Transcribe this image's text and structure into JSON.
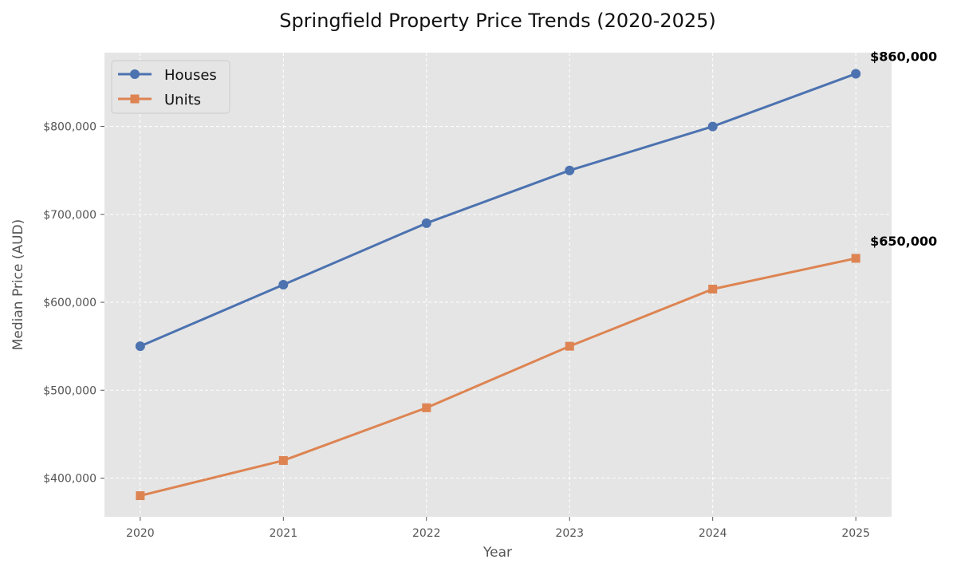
{
  "chart_data": {
    "type": "line",
    "title": "Springfield Property Price Trends (2020-2025)",
    "xlabel": "Year",
    "ylabel": "Median Price (AUD)",
    "x": [
      2020,
      2021,
      2022,
      2023,
      2024,
      2025
    ],
    "x_tick_labels": [
      "2020",
      "2021",
      "2022",
      "2023",
      "2024",
      "2025"
    ],
    "y_ticks": [
      400000,
      500000,
      600000,
      700000,
      800000
    ],
    "y_tick_labels": [
      "$400,000",
      "$500,000",
      "$600,000",
      "$700,000",
      "$800,000"
    ],
    "xlim": [
      2019.75,
      2025.25
    ],
    "ylim": [
      356000,
      884000
    ],
    "grid": true,
    "legend_position": "upper-left",
    "series": [
      {
        "name": "Houses",
        "color": "#4C72B0",
        "marker": "circle",
        "values": [
          550000,
          620000,
          690000,
          750000,
          800000,
          860000
        ],
        "end_label": "$860,000"
      },
      {
        "name": "Units",
        "color": "#DD8452",
        "marker": "square",
        "values": [
          380000,
          420000,
          480000,
          550000,
          615000,
          650000
        ],
        "end_label": "$650,000"
      }
    ]
  }
}
